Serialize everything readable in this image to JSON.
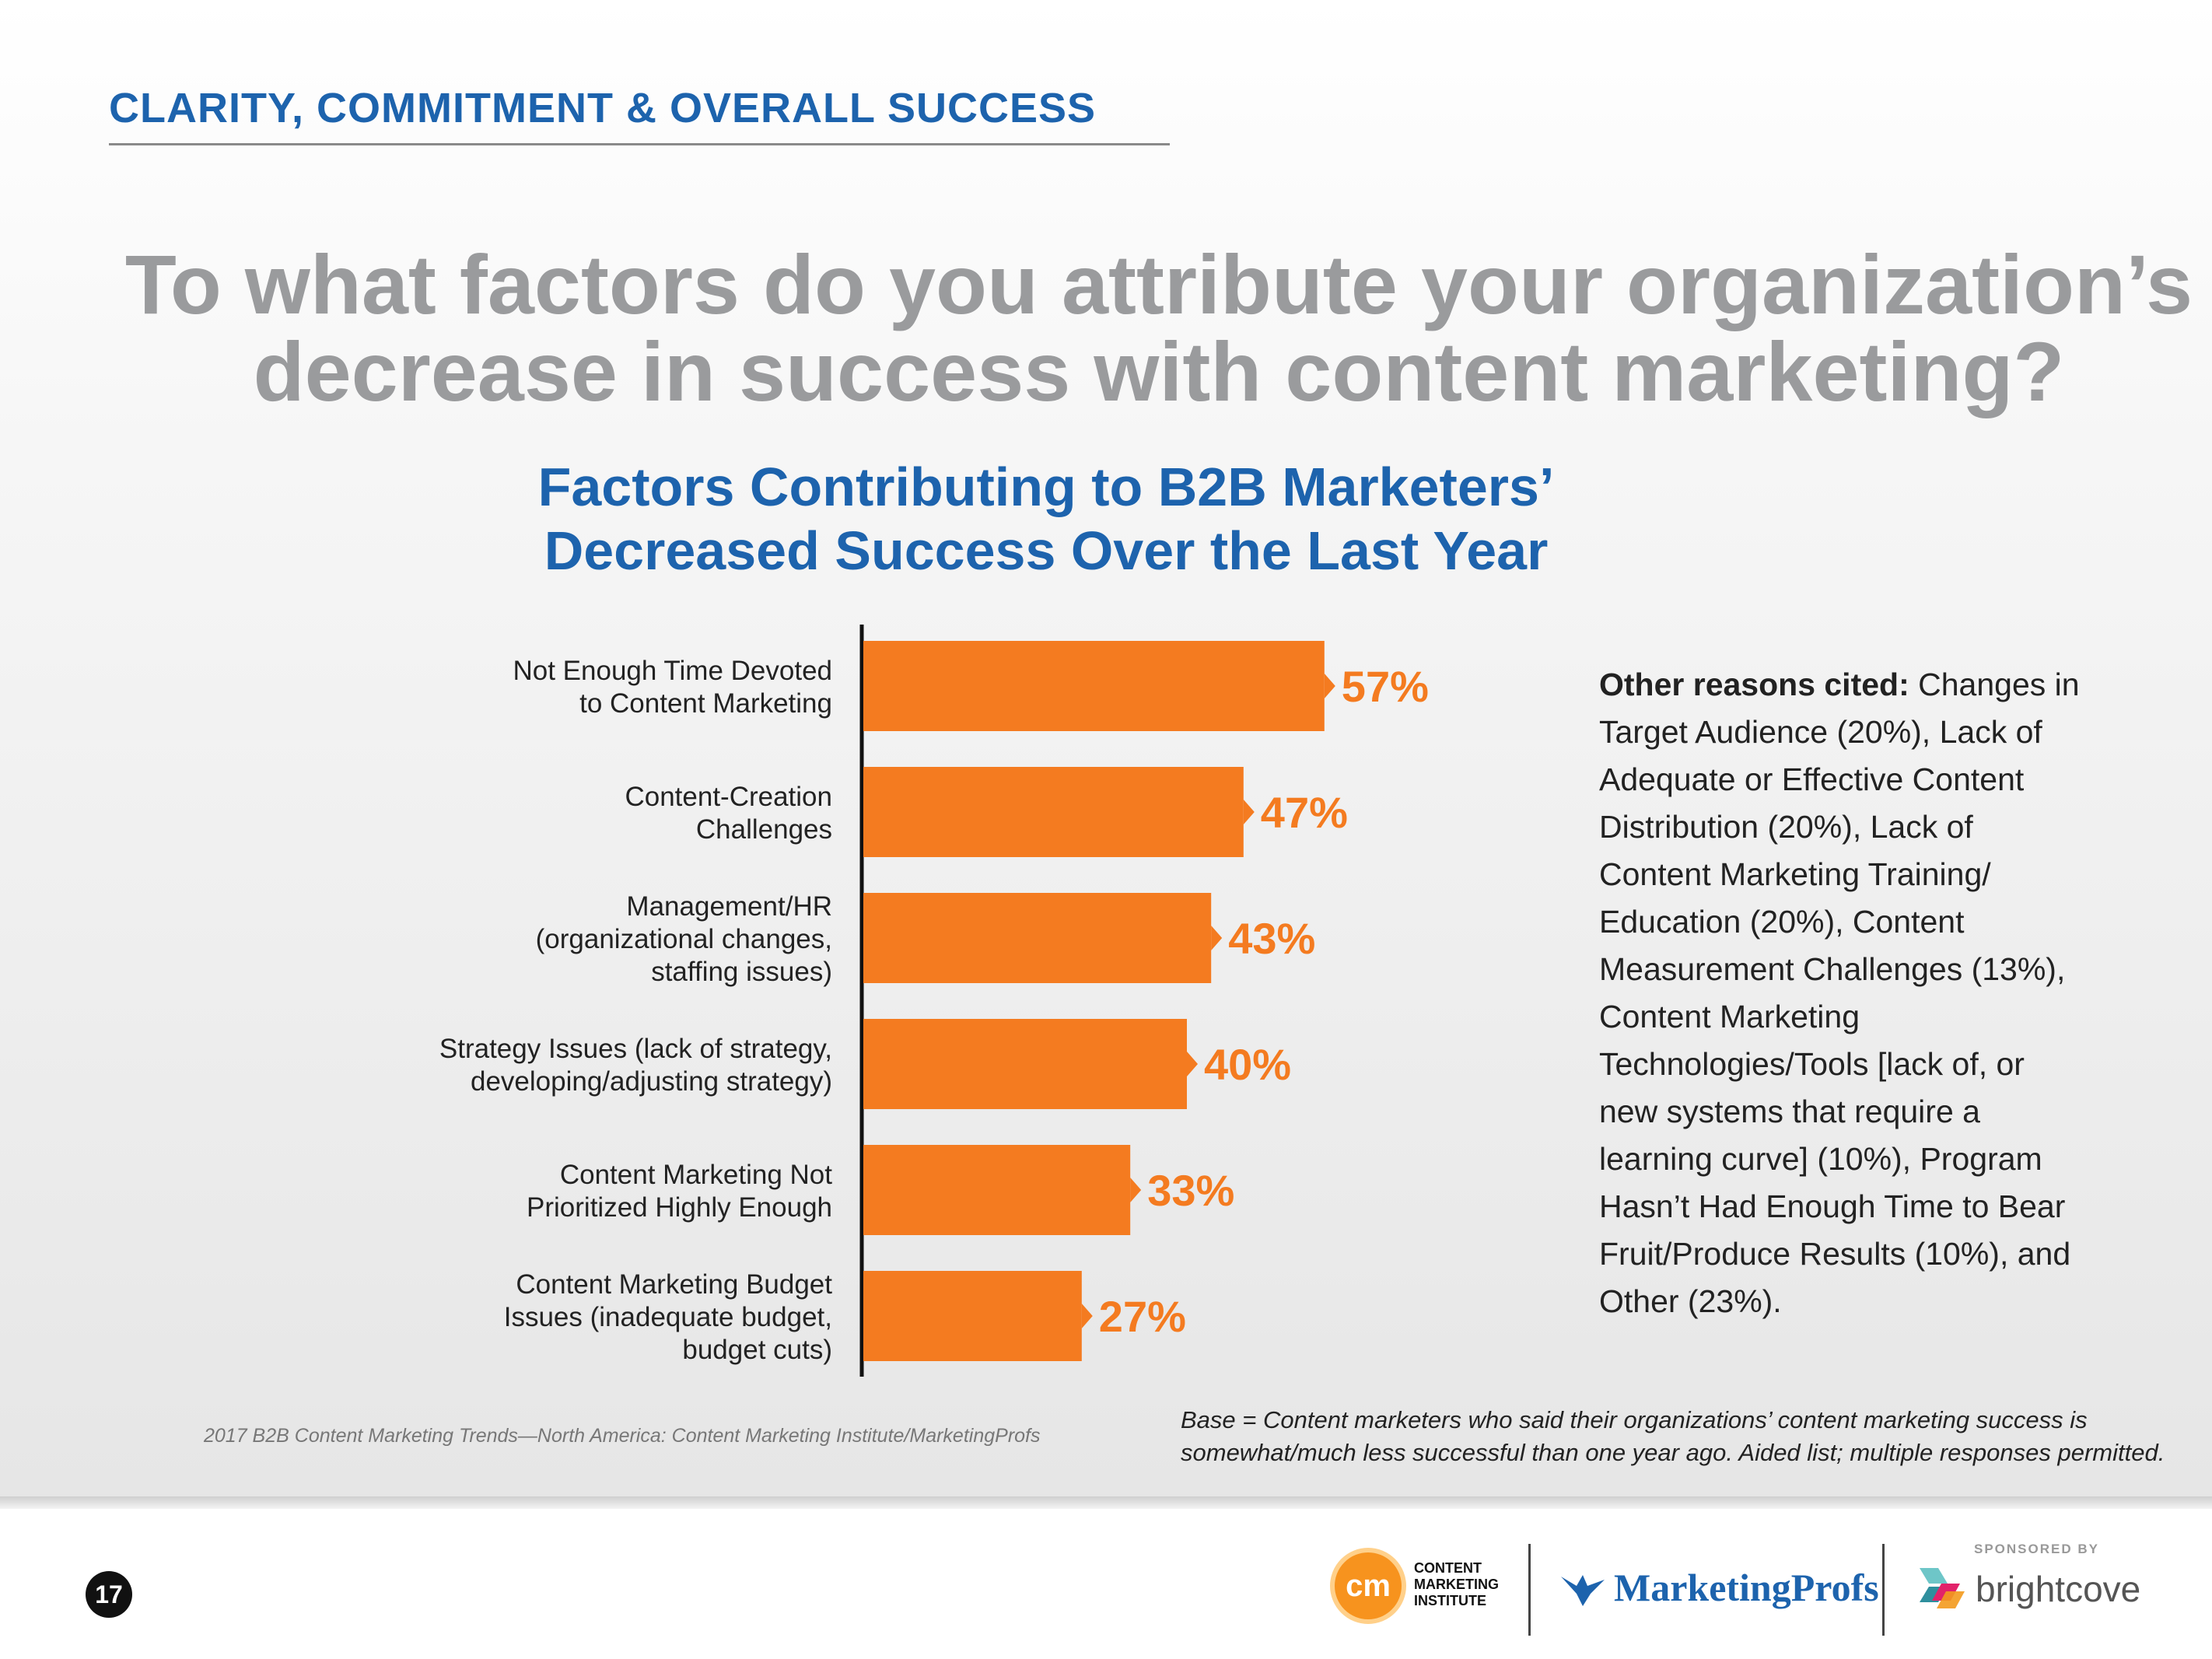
{
  "header": {
    "section_title": "CLARITY, COMMITMENT & OVERALL SUCCESS",
    "question_line1": "To what factors do you attribute your organization’s",
    "question_line2": "decrease in success with content marketing?"
  },
  "chart_data": {
    "type": "bar",
    "orientation": "horizontal",
    "title": "Factors Contributing to B2B Marketers’ Decreased Success Over the Last Year",
    "title_line1": "Factors Contributing to B2B Marketers’",
    "title_line2": "Decreased Success Over the Last Year",
    "categories": [
      "Not Enough Time Devoted to Content Marketing",
      "Content-Creation Challenges",
      "Management/HR (organizational changes, staffing issues)",
      "Strategy Issues (lack of strategy, developing/adjusting strategy)",
      "Content Marketing Not Prioritized Highly Enough",
      "Content Marketing Budget Issues (inadequate budget, budget cuts)"
    ],
    "category_lines": [
      [
        "Not Enough Time Devoted",
        "to Content Marketing"
      ],
      [
        "Content-Creation",
        "Challenges"
      ],
      [
        "Management/HR",
        "(organizational changes,",
        "staffing issues)"
      ],
      [
        "Strategy Issues (lack of strategy,",
        "developing/adjusting strategy)"
      ],
      [
        "Content Marketing Not",
        "Prioritized Highly Enough"
      ],
      [
        "Content Marketing Budget",
        "Issues (inadequate budget,",
        "budget cuts)"
      ]
    ],
    "values": [
      57,
      47,
      43,
      40,
      33,
      27
    ],
    "value_labels": [
      "57%",
      "47%",
      "43%",
      "40%",
      "33%",
      "27%"
    ],
    "unit": "%",
    "xlim": [
      0,
      100
    ],
    "bar_color": "#f47b20",
    "grid": false
  },
  "other_reasons": {
    "label": "Other reasons cited:",
    "text": " Changes in Target Audience (20%), Lack of Adequate or Effective Content Distribution (20%), Lack of Content Marketing Training/ Education (20%), Content Measurement Challenges (13%), Content Marketing Technologies/Tools [lack of, or new systems that require a learning curve] (10%), Program Hasn’t Had Enough Time to Bear Fruit/Produce Results (10%), and Other (23%)."
  },
  "source": "2017 B2B Content Marketing Trends—North America: Content Marketing Institute/MarketingProfs",
  "base_note": "Base = Content marketers who said their organizations’ content marketing success is somewhat/much less successful than one year ago. Aided list; multiple responses permitted.",
  "footer": {
    "page_number": "17",
    "cmi_mark": "cm",
    "cmi_line1": "CONTENT",
    "cmi_line2": "MARKETING",
    "cmi_line3": "INSTITUTE",
    "marketingprofs": "MarketingProfs",
    "sponsored_by": "SPONSORED BY",
    "brightcove": "brightcove"
  },
  "colors": {
    "accent_blue": "#1d63ad",
    "bar_orange": "#f47b20",
    "question_gray": "#9a9b9d"
  }
}
